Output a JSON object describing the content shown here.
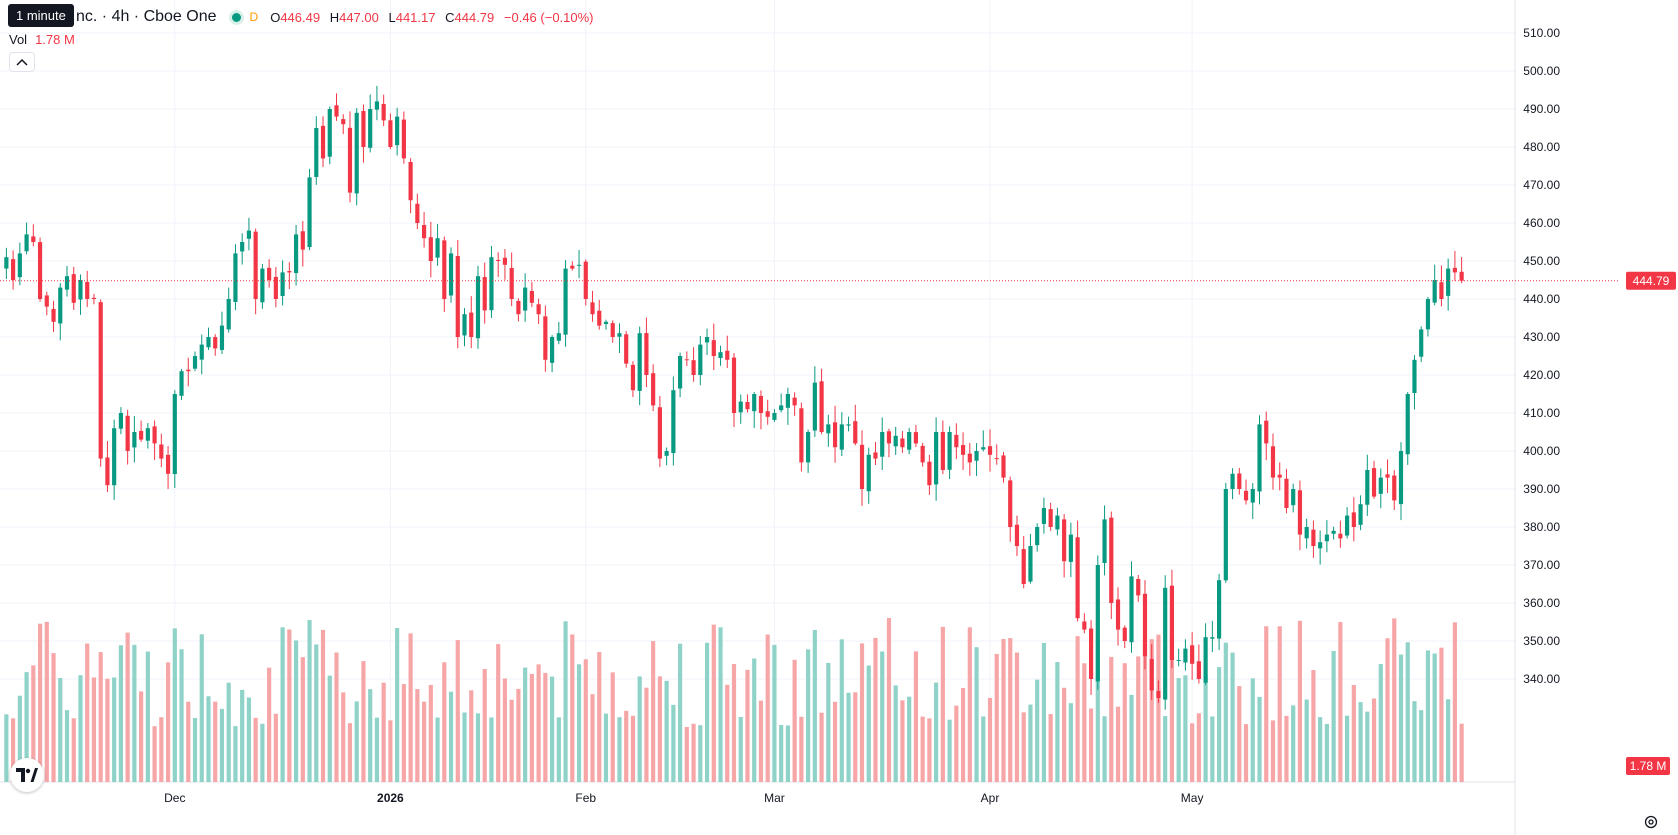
{
  "tooltip": "1 minute",
  "legend": {
    "title": "nc. · 4h · Cboe One",
    "d_label": "D",
    "open_label": "O",
    "open": "446.49",
    "high_label": "H",
    "high": "447.00",
    "low_label": "L",
    "low": "441.17",
    "close_label": "C",
    "close": "444.79",
    "change": "−0.46 (−0.10%)"
  },
  "volume": {
    "label": "Vol",
    "value": "1.78 M"
  },
  "icons": {
    "collapse": "chevron-up-icon",
    "logo": "tradingview-logo-icon",
    "settings": "gear-icon"
  },
  "colors": {
    "up": "#089981",
    "down": "#f23645",
    "up_volume": "#8fd2c8",
    "down_volume": "#f7a6a8"
  },
  "chart_data": {
    "type": "candlestick",
    "interval": "4h",
    "y_ticks": [
      "510.00",
      "500.00",
      "490.00",
      "480.00",
      "470.00",
      "460.00",
      "450.00",
      "440.00",
      "430.00",
      "420.00",
      "410.00",
      "400.00",
      "390.00",
      "380.00",
      "370.00",
      "360.00",
      "350.00",
      "340.00"
    ],
    "ylim": [
      327,
      513
    ],
    "x_ticks": [
      {
        "label": "Dec",
        "index": 25
      },
      {
        "label": "2026",
        "index": 57
      },
      {
        "label": "Feb",
        "index": 86
      },
      {
        "label": "Mar",
        "index": 114
      },
      {
        "label": "Apr",
        "index": 146
      },
      {
        "label": "May",
        "index": 176
      }
    ],
    "last_price": "444.79",
    "last_volume": "1.78 M",
    "close_path": [
      451,
      445,
      452,
      457,
      455,
      440,
      438,
      434,
      443,
      446,
      439,
      445,
      440,
      440,
      398,
      391,
      406,
      410,
      400,
      405,
      403,
      406,
      402,
      398,
      394,
      415,
      421,
      421,
      425,
      428,
      430,
      427,
      433,
      440,
      452,
      455,
      458,
      440,
      448,
      445,
      440,
      447,
      447,
      457,
      453,
      472,
      485,
      477,
      490,
      488,
      486,
      468,
      489,
      480,
      490,
      492,
      487,
      480,
      488,
      477,
      466,
      460,
      456,
      450,
      456,
      440,
      452,
      430,
      436,
      430,
      446,
      437,
      451,
      450,
      449,
      440,
      436,
      443,
      439,
      436,
      424,
      430,
      431,
      448,
      448,
      449,
      440,
      436,
      433,
      434,
      430,
      431,
      423,
      416,
      431,
      420,
      412,
      398,
      400,
      416,
      425,
      424,
      420,
      428,
      430,
      425,
      426,
      424,
      410,
      413,
      411,
      415,
      410,
      409,
      410,
      412,
      415,
      412,
      397,
      405,
      418,
      405,
      407,
      401,
      407,
      407,
      402,
      390,
      399,
      398,
      405,
      402,
      404,
      401,
      405,
      402,
      397,
      391,
      405,
      395,
      405,
      401,
      399,
      397,
      400,
      401,
      399,
      398,
      393,
      380,
      375,
      365,
      375,
      380,
      385,
      380,
      383,
      371,
      378,
      356,
      353,
      340,
      370,
      382,
      360,
      353,
      350,
      367,
      362,
      346,
      337,
      335,
      364,
      345,
      345,
      348,
      344,
      340,
      351,
      351,
      366,
      390,
      394,
      390,
      387,
      390,
      407,
      402,
      393,
      393,
      385,
      390,
      378,
      380,
      375,
      376,
      378,
      379,
      377,
      383,
      380,
      386,
      395,
      388,
      393,
      393,
      387,
      400,
      415,
      424,
      432,
      440,
      445,
      440,
      448,
      447,
      444.79
    ]
  }
}
